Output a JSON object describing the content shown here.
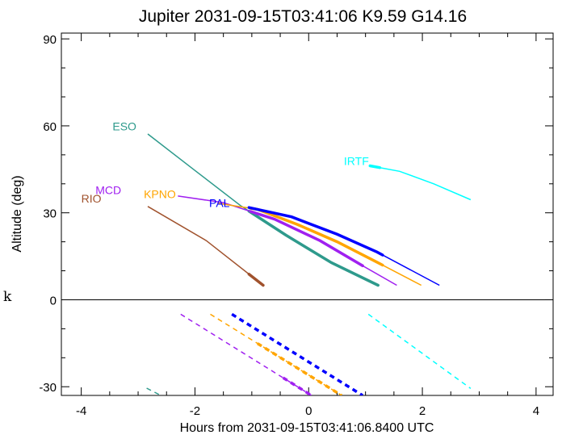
{
  "chart_data": {
    "type": "line",
    "title": "Jupiter 2031-09-15T03:41:06  K9.59  G14.16",
    "xlabel": "Hours from 2031-09-15T03:41:06.8400 UTC",
    "ylabel": "Altitude (deg)",
    "side_mark": "k",
    "xlim": [
      -4.35,
      4.3
    ],
    "ylim": [
      -33,
      92
    ],
    "xticks": [
      -4,
      -2,
      0,
      2,
      4
    ],
    "yticks": [
      -30,
      0,
      30,
      60,
      90
    ],
    "horizon_line": 0,
    "series": [
      {
        "name": "ESO",
        "color": "#2e9a8c",
        "x": [
          -2.83,
          -2.0,
          -1.2,
          -0.4,
          0.4,
          1.22
        ],
        "y": [
          57.2,
          44.6,
          32.5,
          22.3,
          12.8,
          5.0
        ],
        "thick_from": -1.05,
        "below_x": [
          -2.85,
          -2.6
        ],
        "below_y": [
          -30.5,
          -33
        ],
        "label_x": -3.45,
        "label_y": 58.5
      },
      {
        "name": "RIO",
        "color": "#a0522d",
        "x": [
          -2.83,
          -1.8,
          -0.8
        ],
        "y": [
          32.2,
          20.4,
          5.0
        ],
        "thick_from": -1.05,
        "label_x": -4.0,
        "label_y": 33.5
      },
      {
        "name": "MCD",
        "color": "#a020f0",
        "x": [
          -2.3,
          -1.5,
          -0.6,
          0.2,
          0.9,
          1.55
        ],
        "y": [
          35.8,
          33.5,
          27.8,
          20.4,
          12.3,
          5.0
        ],
        "thick_from": -1.02,
        "thick_to": 0.95,
        "below_x": [
          -2.25,
          0.05
        ],
        "below_y": [
          -5.0,
          -33.0
        ],
        "thick_below_from": -0.45,
        "label_x": -3.75,
        "label_y": 36.5
      },
      {
        "name": "KPNO",
        "color": "#ffa500",
        "x": [
          -1.6,
          -0.9,
          -0.2,
          0.5,
          1.2,
          1.98
        ],
        "y": [
          33.3,
          31.2,
          26.0,
          20.0,
          13.0,
          5.0
        ],
        "thick_from": -1.02,
        "thick_to": 1.3,
        "below_x": [
          -1.73,
          0.58
        ],
        "below_y": [
          -5.0,
          -33.0
        ],
        "thick_below_from": -0.9,
        "label_x": -2.9,
        "label_y": 35.0
      },
      {
        "name": "PAL",
        "color": "#0000ff",
        "x": [
          -1.05,
          -0.3,
          0.5,
          1.2,
          2.3
        ],
        "y": [
          31.8,
          28.6,
          22.6,
          16.5,
          5.0
        ],
        "thick_from": -1.05,
        "thick_to": 1.3,
        "below_x": [
          -1.35,
          0.95
        ],
        "below_y": [
          -5.0,
          -33.0
        ],
        "thick_below_from": -1.35,
        "label_x": -1.75,
        "label_y": 32.0
      },
      {
        "name": "IRTF",
        "color": "#00ffff",
        "x": [
          1.08,
          1.6,
          2.2,
          2.85
        ],
        "y": [
          46.2,
          44.3,
          40.0,
          34.5
        ],
        "thick_from": 1.08,
        "thick_to": 1.25,
        "below_x": [
          1.05,
          2.85
        ],
        "below_y": [
          -5.0,
          -30.6
        ],
        "label_x": 0.62,
        "label_y": 46.5
      }
    ]
  }
}
